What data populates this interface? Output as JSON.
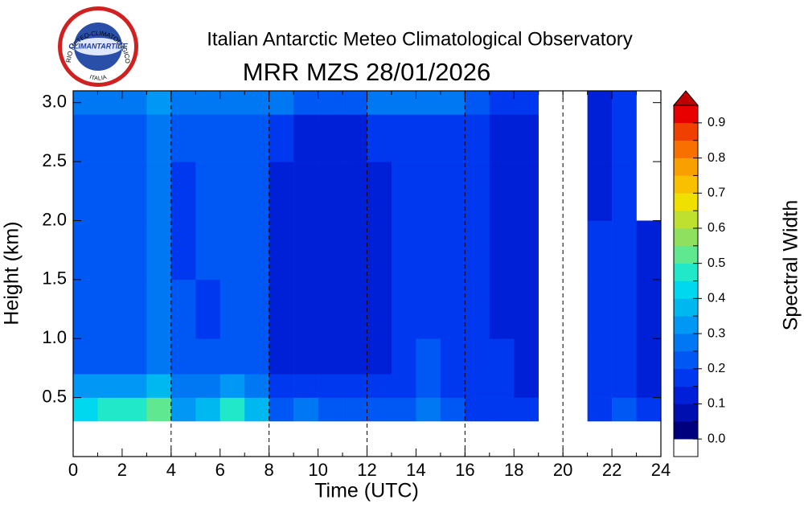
{
  "logo": {
    "ring_text": "OSSERVATORIO METEO-CLIMATOLOGICO ANTARTICO",
    "country": "ITALIA",
    "name": "CLIMANTARTIDE"
  },
  "chart_data": {
    "type": "heatmap",
    "title": "Italian Antarctic Meteo Climatological Observatory",
    "subtitle": "MRR MZS 28/01/2026",
    "x_label": "Time (UTC)",
    "y_label": "Height (km)",
    "colorbar_label": "Spectral Width",
    "xlim": [
      0,
      24
    ],
    "xticks": [
      0,
      2,
      4,
      6,
      8,
      10,
      12,
      14,
      16,
      18,
      20,
      22,
      24
    ],
    "ylim": [
      0,
      3.1
    ],
    "yticks": [
      0.5,
      {
        "value": 1,
        "label": "1.0"
      },
      1.5,
      {
        "value": 2,
        "label": "2.0"
      },
      2.5,
      {
        "value": 3,
        "label": "3.0"
      }
    ],
    "dashed_lines": [
      4,
      8,
      12,
      16,
      20
    ],
    "x_bins": [
      0,
      1,
      2,
      3,
      4,
      5,
      6,
      7,
      8,
      9,
      10,
      11,
      12,
      13,
      14,
      15,
      16,
      17,
      18,
      19,
      20,
      21,
      22,
      23,
      24
    ],
    "y_bins": [
      0.3,
      0.5,
      0.7,
      1.0,
      1.5,
      2.0,
      2.5,
      2.9,
      3.1
    ],
    "z": [
      [
        0.4,
        0.45,
        0.45,
        0.5,
        0.3,
        0.35,
        0.45,
        0.35,
        0.2,
        0.25,
        0.22,
        0.22,
        0.2,
        0.2,
        0.28,
        0.2,
        0.18,
        0.18,
        0.15,
        null,
        null,
        0.18,
        0.2,
        0.15
      ],
      [
        0.3,
        0.3,
        0.3,
        0.35,
        0.25,
        0.28,
        0.3,
        0.25,
        0.15,
        0.15,
        0.15,
        0.15,
        0.15,
        0.15,
        0.2,
        0.15,
        0.15,
        0.15,
        0.12,
        null,
        null,
        0.15,
        0.15,
        0.12
      ],
      [
        0.22,
        0.22,
        0.22,
        0.28,
        0.2,
        0.2,
        0.22,
        0.22,
        0.12,
        0.12,
        0.12,
        0.12,
        0.12,
        0.15,
        0.2,
        0.15,
        0.15,
        0.15,
        0.12,
        null,
        null,
        0.15,
        0.15,
        0.12
      ],
      [
        0.2,
        0.2,
        0.2,
        0.25,
        0.2,
        0.18,
        0.2,
        0.22,
        0.12,
        0.1,
        0.1,
        0.1,
        0.12,
        0.15,
        0.18,
        0.15,
        0.15,
        0.12,
        0.12,
        null,
        null,
        0.15,
        0.15,
        0.12
      ],
      [
        0.2,
        0.2,
        0.2,
        0.25,
        0.18,
        0.2,
        0.2,
        0.22,
        0.12,
        0.1,
        0.1,
        0.1,
        0.12,
        0.15,
        0.18,
        0.15,
        0.15,
        0.12,
        0.12,
        null,
        null,
        0.15,
        0.15,
        0.12
      ],
      [
        0.2,
        0.2,
        0.2,
        0.25,
        0.18,
        0.2,
        0.2,
        0.22,
        0.12,
        0.1,
        0.1,
        0.1,
        0.12,
        0.15,
        0.18,
        0.15,
        0.15,
        0.12,
        0.12,
        null,
        null,
        0.12,
        0.15,
        null
      ],
      [
        0.22,
        0.22,
        0.22,
        0.25,
        0.2,
        0.22,
        0.22,
        0.22,
        0.15,
        0.12,
        0.12,
        0.12,
        0.15,
        0.15,
        0.18,
        0.15,
        0.15,
        0.12,
        0.12,
        null,
        null,
        0.12,
        0.15,
        null
      ],
      [
        0.28,
        0.28,
        0.28,
        0.3,
        0.25,
        0.28,
        0.28,
        0.28,
        0.25,
        0.22,
        0.22,
        0.22,
        0.25,
        0.25,
        0.25,
        0.25,
        0.22,
        0.18,
        0.15,
        null,
        null,
        0.12,
        0.15,
        null
      ]
    ],
    "colorbar": {
      "bounds": [
        -0.05,
        0,
        0.05,
        0.1,
        0.15,
        0.2,
        0.25,
        0.3,
        0.35,
        0.4,
        0.45,
        0.5,
        0.55,
        0.6,
        0.65,
        0.7,
        0.75,
        0.8,
        0.85,
        0.9,
        0.95
      ],
      "colors": [
        "#ffffff",
        "#00007f",
        "#0010b0",
        "#0020d8",
        "#0038f0",
        "#0058f4",
        "#0078f4",
        "#0098f4",
        "#00b8f0",
        "#00d8f0",
        "#20e8c8",
        "#60e890",
        "#90e060",
        "#c0e030",
        "#f0e000",
        "#f8c000",
        "#f8a000",
        "#f87000",
        "#f04000",
        "#e80000"
      ],
      "extend_color": "#c00000",
      "ticks": [
        {
          "value": 0,
          "label": "0.0"
        },
        0.1,
        0.2,
        0.3,
        0.4,
        0.5,
        0.6,
        0.7,
        0.8,
        0.9
      ]
    }
  }
}
